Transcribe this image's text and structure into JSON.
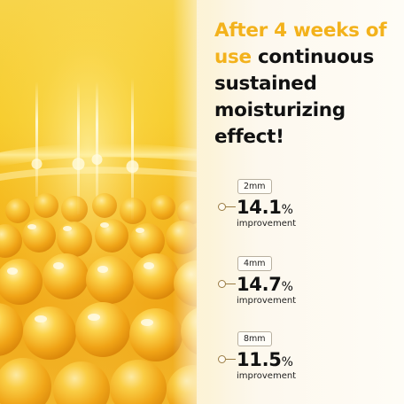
{
  "headline": {
    "highlight": "After 4 weeks of use",
    "rest": " continuous sustained moisturizing effect!"
  },
  "metrics": [
    {
      "depth": "2mm",
      "value": "14.1",
      "unit": "%",
      "caption": "improvement"
    },
    {
      "depth": "4mm",
      "value": "14.7",
      "unit": "%",
      "caption": "improvement"
    },
    {
      "depth": "8mm",
      "value": "11.5",
      "unit": "%",
      "caption": "improvement"
    }
  ],
  "colors": {
    "accent": "#f3b21c",
    "text": "#111111",
    "connector": "#9a7c44"
  }
}
